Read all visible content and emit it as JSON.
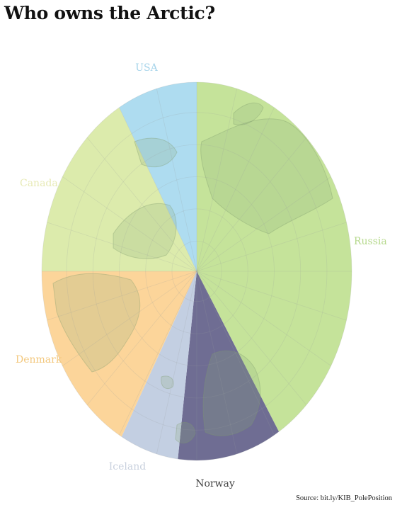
{
  "title": "Who owns the Arctic?",
  "source": "Source: bit.ly/KIB_PolePosition",
  "chart_data": {
    "type": "pie",
    "title": "Who owns the Arctic?",
    "slices": [
      {
        "label": "Russia",
        "start_deg": 0,
        "end_deg": 148,
        "color": "#c5e39a"
      },
      {
        "label": "Norway",
        "start_deg": 148,
        "end_deg": 187,
        "color": "#6f6d93"
      },
      {
        "label": "Iceland",
        "start_deg": 187,
        "end_deg": 209,
        "color": "#c3cfe2"
      },
      {
        "label": "Denmark",
        "start_deg": 209,
        "end_deg": 270,
        "color": "#fcd59a"
      },
      {
        "label": "Canada",
        "start_deg": 270,
        "end_deg": 330,
        "color": "#dcebac"
      },
      {
        "label": "USA",
        "start_deg": 330,
        "end_deg": 360,
        "color": "#aedcf0"
      }
    ],
    "label_colors": {
      "Russia": "#b6d98c",
      "Norway": "#444444",
      "Iceland": "#c9d1de",
      "Denmark": "#f3c87e",
      "Canada": "#e7eab5",
      "USA": "#a6d4ea"
    }
  }
}
